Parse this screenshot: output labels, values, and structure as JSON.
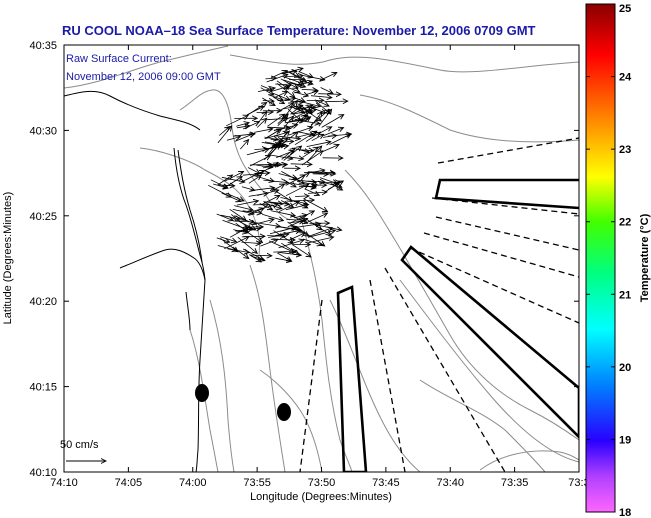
{
  "title": "RU COOL  NOAA–18  Sea Surface Temperature:  November 12, 2006 0709 GMT",
  "annotation_line1": "Raw Surface Current:",
  "annotation_line2": "November 12, 2006 09:00 GMT",
  "scale_label": "50 cm/s",
  "x_axis_label": "Longitude (Degrees:Minutes)",
  "y_axis_label": "Latitude (Degrees:Minutes)",
  "x_ticks": [
    "74:10",
    "74:05",
    "74:00",
    "73:55",
    "73:50",
    "73:45",
    "73:40",
    "73:35",
    "73:3"
  ],
  "y_ticks": [
    "40:35",
    "40:30",
    "40:25",
    "40:20",
    "40:15",
    "40:10"
  ],
  "colorbar": {
    "label": "Temperature (°C)",
    "ticks": [
      "25",
      "24",
      "23",
      "22",
      "21",
      "20",
      "19",
      "18"
    ],
    "min": 18,
    "max": 25
  },
  "colors": {
    "title": "#1a1aa8",
    "coast": "#000000",
    "bathymetry": "#8c8c8c"
  }
}
